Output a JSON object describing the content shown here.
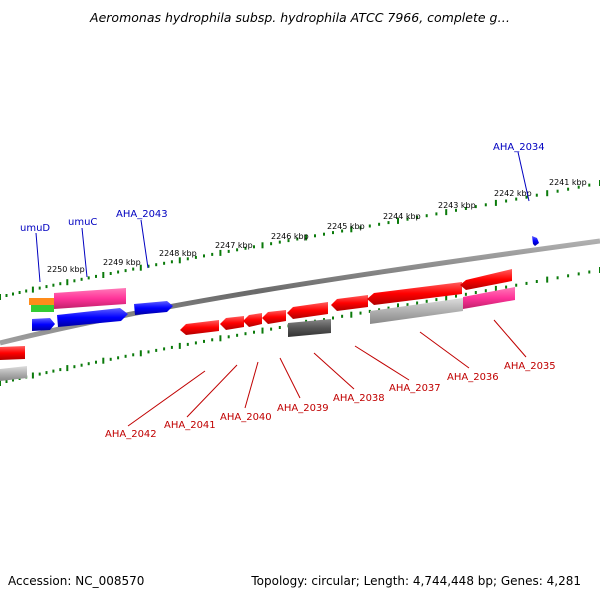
{
  "title": "Aeromonas hydrophila subsp. hydrophila ATCC 7966, complete g…",
  "footer": {
    "accession": "Accession: NC_008570",
    "summary": "Topology: circular; Length: 4,744,448 bp; Genes: 4,281"
  },
  "colors": {
    "forward_gene_label": "#0000c0",
    "reverse_gene_label": "#c00000",
    "backbone": "#808080",
    "tick": "#0a7a0a",
    "cds_forward": "#0000ff",
    "cds_reverse": "#ff0000",
    "magenta_feature": "#ff3399",
    "grey_feature": "#b0b0b0",
    "dark_feature": "#555555",
    "orange_feature": "#ff8c1a",
    "green_feature": "#33cc33"
  },
  "ruler_labels": [
    "2250 kbp",
    "2249 kbp",
    "2248 kbp",
    "2247 kbp",
    "2246 kbp",
    "2245 kbp",
    "2244 kbp",
    "2243 kbp",
    "2242 kbp",
    "2241 kbp"
  ],
  "forward_gene_labels": [
    "umuD",
    "umuC",
    "AHA_2043",
    "AHA_2034"
  ],
  "reverse_gene_labels": [
    "AHA_2042",
    "AHA_2041",
    "AHA_2040",
    "AHA_2039",
    "AHA_2038",
    "AHA_2037",
    "AHA_2036",
    "AHA_2035"
  ]
}
